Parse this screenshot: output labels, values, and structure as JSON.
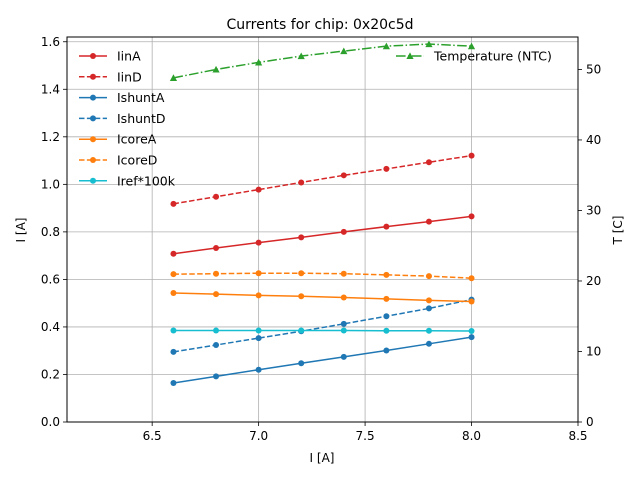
{
  "chart_data": {
    "type": "line",
    "title": "Currents for chip: 0x20c5d",
    "xlabel": "I [A]",
    "ylabel": "I [A]",
    "y2label": "T [C]",
    "xlim": [
      6.1,
      8.5
    ],
    "ylim": [
      0,
      1.62
    ],
    "y2lim": [
      0,
      54.6
    ],
    "xticks": [
      "6.5",
      "7.0",
      "7.5",
      "8.0",
      "8.5"
    ],
    "yticks": [
      "0.0",
      "0.2",
      "0.4",
      "0.6",
      "0.8",
      "1.0",
      "1.2",
      "1.4",
      "1.6"
    ],
    "y2ticks": [
      "0",
      "10",
      "20",
      "30",
      "40",
      "50"
    ],
    "grid": true,
    "legend_position": "top-left",
    "legend2_position": "top-right",
    "x": [
      6.6,
      6.8,
      7.0,
      7.2,
      7.4,
      7.6,
      7.8,
      8.0
    ],
    "series": [
      {
        "name": "IinA",
        "color": "#d62728",
        "dash": "solid",
        "marker": "circle",
        "axis": "left",
        "values": [
          0.708,
          0.732,
          0.755,
          0.777,
          0.8,
          0.822,
          0.843,
          0.865
        ]
      },
      {
        "name": "IinD",
        "color": "#d62728",
        "dash": "dashed",
        "marker": "circle",
        "axis": "left",
        "values": [
          0.918,
          0.948,
          0.978,
          1.008,
          1.038,
          1.065,
          1.093,
          1.121
        ]
      },
      {
        "name": "IshuntA",
        "color": "#1f77b4",
        "dash": "solid",
        "marker": "circle",
        "axis": "left",
        "values": [
          0.164,
          0.192,
          0.22,
          0.247,
          0.274,
          0.301,
          0.329,
          0.357
        ]
      },
      {
        "name": "IshuntD",
        "color": "#1f77b4",
        "dash": "dashed",
        "marker": "circle",
        "axis": "left",
        "values": [
          0.295,
          0.324,
          0.353,
          0.382,
          0.413,
          0.445,
          0.478,
          0.515
        ]
      },
      {
        "name": "IcoreA",
        "color": "#ff7f0e",
        "dash": "solid",
        "marker": "circle",
        "axis": "left",
        "values": [
          0.543,
          0.538,
          0.533,
          0.529,
          0.524,
          0.518,
          0.512,
          0.507
        ]
      },
      {
        "name": "IcoreD",
        "color": "#ff7f0e",
        "dash": "dashed",
        "marker": "circle",
        "axis": "left",
        "values": [
          0.622,
          0.624,
          0.626,
          0.626,
          0.624,
          0.619,
          0.614,
          0.605
        ]
      },
      {
        "name": "Iref*100k",
        "color": "#17becf",
        "dash": "solid",
        "marker": "circle",
        "axis": "left",
        "values": [
          0.385,
          0.385,
          0.385,
          0.385,
          0.385,
          0.384,
          0.384,
          0.383
        ]
      },
      {
        "name": "Temperature (NTC)",
        "color": "#2ca02c",
        "dash": "dashdot",
        "marker": "triangle",
        "axis": "right",
        "values": [
          48.8,
          50.0,
          51.0,
          51.9,
          52.6,
          53.3,
          53.6,
          53.3
        ]
      }
    ]
  }
}
